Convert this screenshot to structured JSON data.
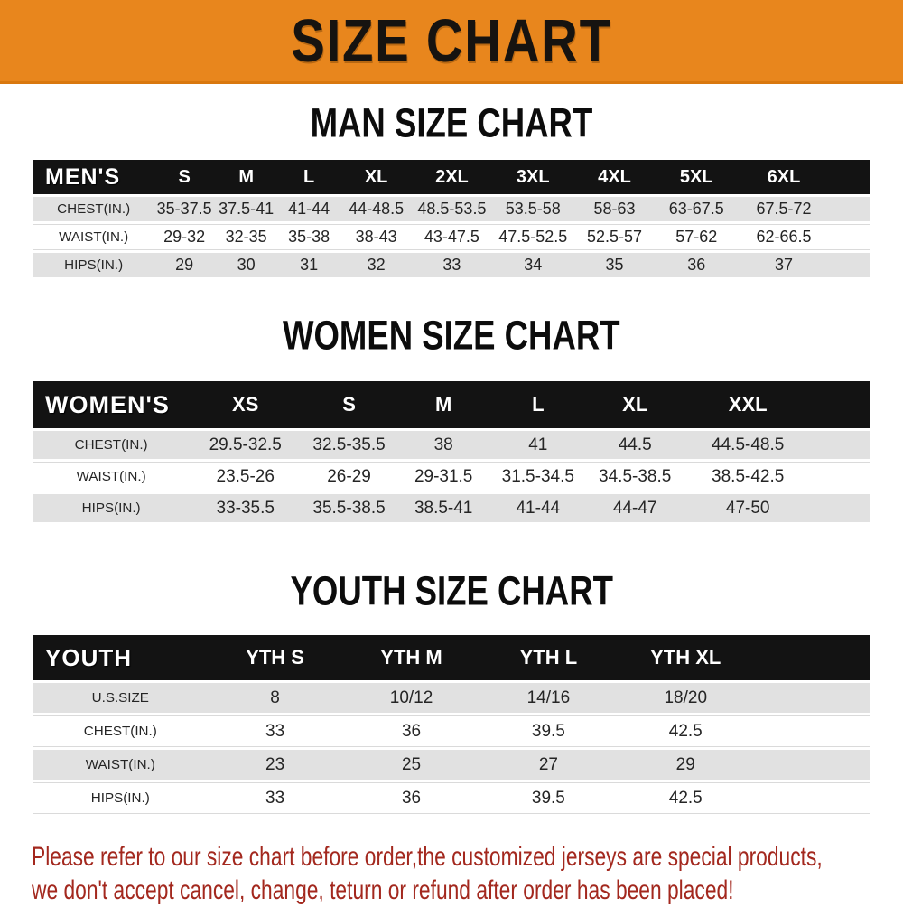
{
  "banner": {
    "title": "SIZE CHART"
  },
  "colors": {
    "banner_bg": "#e8861d",
    "bar_bg": "#131313",
    "row_alt_bg": "#e1e1e1",
    "footer_text": "#a3281e"
  },
  "sections": [
    {
      "title": "MAN SIZE CHART",
      "bar_label": "MEN'S",
      "sizes": [
        "S",
        "M",
        "L",
        "XL",
        "2XL",
        "3XL",
        "4XL",
        "5XL",
        "6XL"
      ],
      "rows": [
        {
          "label": "CHEST(IN.)",
          "values": [
            "35-37.5",
            "37.5-41",
            "41-44",
            "44-48.5",
            "48.5-53.5",
            "53.5-58",
            "58-63",
            "63-67.5",
            "67.5-72"
          ]
        },
        {
          "label": "WAIST(IN.)",
          "values": [
            "29-32",
            "32-35",
            "35-38",
            "38-43",
            "43-47.5",
            "47.5-52.5",
            "52.5-57",
            "57-62",
            "62-66.5"
          ]
        },
        {
          "label": "HIPS(IN.)",
          "values": [
            "29",
            "30",
            "31",
            "32",
            "33",
            "34",
            "35",
            "36",
            "37"
          ]
        }
      ]
    },
    {
      "title": "WOMEN SIZE CHART",
      "bar_label": "WOMEN'S",
      "sizes": [
        "XS",
        "S",
        "M",
        "L",
        "XL",
        "XXL"
      ],
      "rows": [
        {
          "label": "CHEST(IN.)",
          "values": [
            "29.5-32.5",
            "32.5-35.5",
            "38",
            "41",
            "44.5",
            "44.5-48.5"
          ]
        },
        {
          "label": "WAIST(IN.)",
          "values": [
            "23.5-26",
            "26-29",
            "29-31.5",
            "31.5-34.5",
            "34.5-38.5",
            "38.5-42.5"
          ]
        },
        {
          "label": "HIPS(IN.)",
          "values": [
            "33-35.5",
            "35.5-38.5",
            "38.5-41",
            "41-44",
            "44-47",
            "47-50"
          ]
        }
      ]
    },
    {
      "title": "YOUTH SIZE CHART",
      "bar_label": "YOUTH",
      "sizes": [
        "YTH S",
        "YTH M",
        "YTH L",
        "YTH XL"
      ],
      "rows": [
        {
          "label": "U.S.SIZE",
          "values": [
            "8",
            "10/12",
            "14/16",
            "18/20"
          ]
        },
        {
          "label": "CHEST(IN.)",
          "values": [
            "33",
            "36",
            "39.5",
            "42.5"
          ]
        },
        {
          "label": "WAIST(IN.)",
          "values": [
            "23",
            "25",
            "27",
            "29"
          ]
        },
        {
          "label": "HIPS(IN.)",
          "values": [
            "33",
            "36",
            "39.5",
            "42.5"
          ]
        }
      ]
    }
  ],
  "footer": {
    "line1": "Please refer to our size chart before order,the customized jerseys are special products,",
    "line2": "we don't accept cancel, change, teturn or refund after order has been placed!"
  }
}
